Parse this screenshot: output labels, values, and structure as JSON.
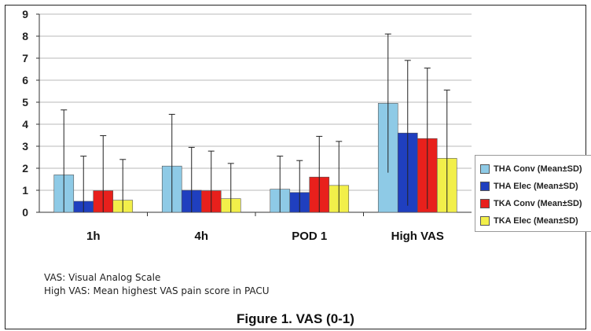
{
  "chart_data": {
    "type": "bar",
    "categories": [
      "1h",
      "4h",
      "POD 1",
      "High VAS"
    ],
    "series": [
      {
        "name": "THA Conv (Mean±SD)",
        "color": "#8ecae6",
        "values": [
          1.7,
          2.1,
          1.05,
          4.95
        ],
        "errors": [
          2.95,
          2.35,
          1.5,
          3.15
        ]
      },
      {
        "name": "THA Elec (Mean±SD)",
        "color": "#1f3fbf",
        "values": [
          0.5,
          1.0,
          0.9,
          3.6
        ],
        "errors": [
          2.05,
          1.95,
          1.45,
          3.3
        ]
      },
      {
        "name": "TKA Conv (Mean±SD)",
        "color": "#e8201c",
        "values": [
          0.98,
          0.98,
          1.6,
          3.35
        ],
        "errors": [
          2.5,
          1.8,
          1.85,
          3.2
        ]
      },
      {
        "name": "TKA Elec (Mean±SD)",
        "color": "#f2ef4a",
        "values": [
          0.55,
          0.62,
          1.22,
          2.45
        ],
        "errors": [
          1.85,
          1.6,
          2.0,
          3.1
        ]
      }
    ],
    "yticks": [
      "0",
      "1",
      "2",
      "3",
      "4",
      "5",
      "6",
      "7",
      "8",
      "9"
    ],
    "ylim": [
      0,
      9
    ],
    "grid": true,
    "legend_position": "right"
  },
  "notes": {
    "line1": "VAS: Visual Analog Scale",
    "line2": "High VAS: Mean highest VAS pain score in PACU"
  },
  "caption": "Figure 1. VAS (0-1)"
}
